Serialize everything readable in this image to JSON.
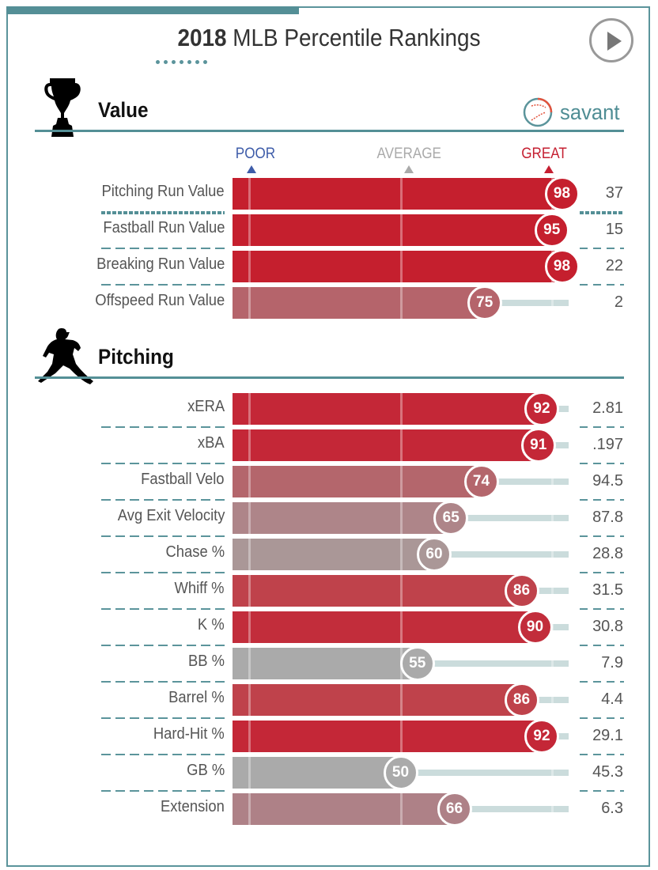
{
  "header": {
    "title_year": "2018",
    "title_rest": " MLB Percentile Rankings",
    "play_button": "play-icon"
  },
  "brand": {
    "text": "savant",
    "icon": "baseball-icon"
  },
  "scale": {
    "poor": {
      "label": "POOR",
      "color": "#3e5ca9"
    },
    "average": {
      "label": "AVERAGE",
      "color": "#aaaaaa"
    },
    "great": {
      "label": "GREAT",
      "color": "#c51f31"
    }
  },
  "sections": [
    {
      "title": "Value",
      "icon": "trophy-icon"
    },
    {
      "title": "Pitching",
      "icon": "pitcher-icon"
    }
  ],
  "chart_data": {
    "type": "bar",
    "title": "2018 MLB Percentile Rankings",
    "xlim": [
      0,
      100
    ],
    "scale_labels": [
      "POOR",
      "AVERAGE",
      "GREAT"
    ],
    "groups": [
      {
        "name": "Value",
        "rows": [
          {
            "label": "Pitching Run Value",
            "percentile": 98,
            "value": "37",
            "color": "#c51f2e"
          },
          {
            "label": "Fastball Run Value",
            "percentile": 95,
            "value": "15",
            "color": "#c51f2e"
          },
          {
            "label": "Breaking Run Value",
            "percentile": 98,
            "value": "22",
            "color": "#c51f2e"
          },
          {
            "label": "Offspeed Run Value",
            "percentile": 75,
            "value": "2",
            "color": "#b5646b"
          }
        ]
      },
      {
        "name": "Pitching",
        "rows": [
          {
            "label": "xERA",
            "percentile": 92,
            "value": "2.81",
            "color": "#c42737"
          },
          {
            "label": "xBA",
            "percentile": 91,
            "value": ".197",
            "color": "#c42737"
          },
          {
            "label": "Fastball Velo",
            "percentile": 74,
            "value": "94.5",
            "color": "#b4666c"
          },
          {
            "label": "Avg Exit Velocity",
            "percentile": 65,
            "value": "87.8",
            "color": "#ae8589"
          },
          {
            "label": "Chase %",
            "percentile": 60,
            "value": "28.8",
            "color": "#aa9797"
          },
          {
            "label": "Whiff %",
            "percentile": 86,
            "value": "31.5",
            "color": "#bf424b"
          },
          {
            "label": "K %",
            "percentile": 90,
            "value": "30.8",
            "color": "#c22d3b"
          },
          {
            "label": "BB %",
            "percentile": 55,
            "value": "7.9",
            "color": "#aaaaaa"
          },
          {
            "label": "Barrel %",
            "percentile": 86,
            "value": "4.4",
            "color": "#bf424b"
          },
          {
            "label": "Hard-Hit %",
            "percentile": 92,
            "value": "29.1",
            "color": "#c42737"
          },
          {
            "label": "GB %",
            "percentile": 50,
            "value": "45.3",
            "color": "#aaaaaa"
          },
          {
            "label": "Extension",
            "percentile": 66,
            "value": "6.3",
            "color": "#ae8187"
          }
        ]
      }
    ]
  }
}
